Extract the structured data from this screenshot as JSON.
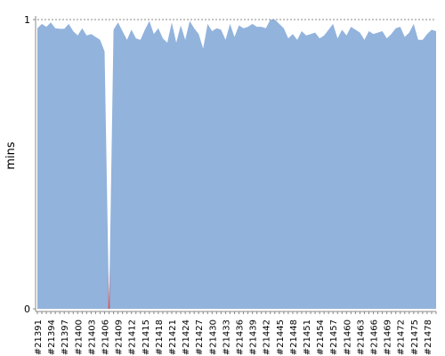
{
  "chart_data": {
    "type": "area",
    "y_label": "mins",
    "categories": [
      "#21391",
      null,
      null,
      "#21394",
      null,
      null,
      "#21397",
      null,
      null,
      "#21400",
      null,
      null,
      "#21403",
      null,
      null,
      "#21406",
      null,
      null,
      "#21409",
      null,
      null,
      "#21412",
      null,
      null,
      "#21415",
      null,
      null,
      "#21418",
      null,
      null,
      "#21421",
      null,
      null,
      "#21424",
      null,
      null,
      "#21427",
      null,
      null,
      "#21430",
      null,
      null,
      "#21433",
      null,
      null,
      "#21436",
      null,
      null,
      "#21439",
      null,
      null,
      "#21442",
      null,
      null,
      "#21445",
      null,
      null,
      "#21448",
      null,
      null,
      "#21451",
      null,
      null,
      "#21454",
      null,
      null,
      "#21457",
      null,
      null,
      "#21460",
      null,
      null,
      "#21463",
      null,
      null,
      "#21466",
      null,
      null,
      "#21469",
      null,
      null,
      "#21472",
      null,
      null,
      "#21475",
      null,
      null,
      "#21478",
      null,
      null
    ],
    "series": [
      {
        "color": "#92b3dc",
        "values": [
          0.97,
          0.985,
          0.975,
          0.99,
          0.97,
          0.968,
          0.968,
          0.985,
          0.96,
          0.945,
          0.97,
          0.945,
          0.95,
          0.94,
          0.93,
          0.89,
          0,
          0.965,
          0.99,
          0.96,
          0.93,
          0.965,
          0.935,
          0.93,
          0.965,
          0.995,
          0.95,
          0.97,
          0.935,
          0.92,
          0.99,
          0.92,
          0.98,
          0.93,
          0.995,
          0.97,
          0.95,
          0.9,
          0.985,
          0.96,
          0.97,
          0.965,
          0.93,
          0.985,
          0.94,
          0.98,
          0.97,
          0.975,
          0.985,
          0.975,
          0.975,
          0.97,
          1.0,
          1.0,
          0.985,
          0.97,
          0.935,
          0.95,
          0.93,
          0.96,
          0.945,
          0.95,
          0.955,
          0.935,
          0.945,
          0.965,
          0.985,
          0.935,
          0.965,
          0.945,
          0.975,
          0.965,
          0.955,
          0.93,
          0.96,
          0.95,
          0.955,
          0.96,
          0.935,
          0.95,
          0.97,
          0.975,
          0.94,
          0.955,
          0.985,
          0.93,
          0.93,
          0.95,
          0.965,
          0.96
        ],
        "point_colors": [
          "#92b3dc",
          "#92b3dc",
          "#92b3dc",
          "#92b3dc",
          "#92b3dc",
          "#92b3dc",
          "#92b3dc",
          "#92b3dc",
          "#92b3dc",
          "#92b3dc",
          "#92b3dc",
          "#92b3dc",
          "#92b3dc",
          "#92b3dc",
          "#92b3dc",
          "#92b3dc",
          "#e8413c",
          "#92b3dc",
          "#92b3dc",
          "#92b3dc",
          "#92b3dc",
          "#92b3dc",
          "#92b3dc",
          "#92b3dc",
          "#92b3dc",
          "#92b3dc",
          "#92b3dc",
          "#92b3dc",
          "#92b3dc",
          "#92b3dc",
          "#92b3dc",
          "#92b3dc",
          "#92b3dc",
          "#92b3dc",
          "#92b3dc",
          "#92b3dc",
          "#92b3dc",
          "#92b3dc",
          "#92b3dc",
          "#92b3dc",
          "#92b3dc",
          "#92b3dc",
          "#92b3dc",
          "#92b3dc",
          "#92b3dc",
          "#92b3dc",
          "#92b3dc",
          "#92b3dc",
          "#92b3dc",
          "#92b3dc",
          "#92b3dc",
          "#92b3dc",
          "#92b3dc",
          "#92b3dc",
          "#92b3dc",
          "#92b3dc",
          "#92b3dc",
          "#92b3dc",
          "#92b3dc",
          "#92b3dc",
          "#92b3dc",
          "#92b3dc",
          "#92b3dc",
          "#92b3dc",
          "#92b3dc",
          "#92b3dc",
          "#92b3dc",
          "#92b3dc",
          "#92b3dc",
          "#92b3dc",
          "#92b3dc",
          "#92b3dc",
          "#92b3dc",
          "#92b3dc",
          "#92b3dc",
          "#92b3dc",
          "#92b3dc",
          "#92b3dc",
          "#92b3dc",
          "#92b3dc",
          "#92b3dc",
          "#92b3dc",
          "#92b3dc",
          "#92b3dc",
          "#92b3dc",
          "#92b3dc",
          "#92b3dc",
          "#92b3dc",
          "#92b3dc",
          "#92b3dc"
        ]
      }
    ],
    "ylim": [
      0,
      1
    ],
    "yticks": [
      0,
      1
    ],
    "grid": true
  }
}
